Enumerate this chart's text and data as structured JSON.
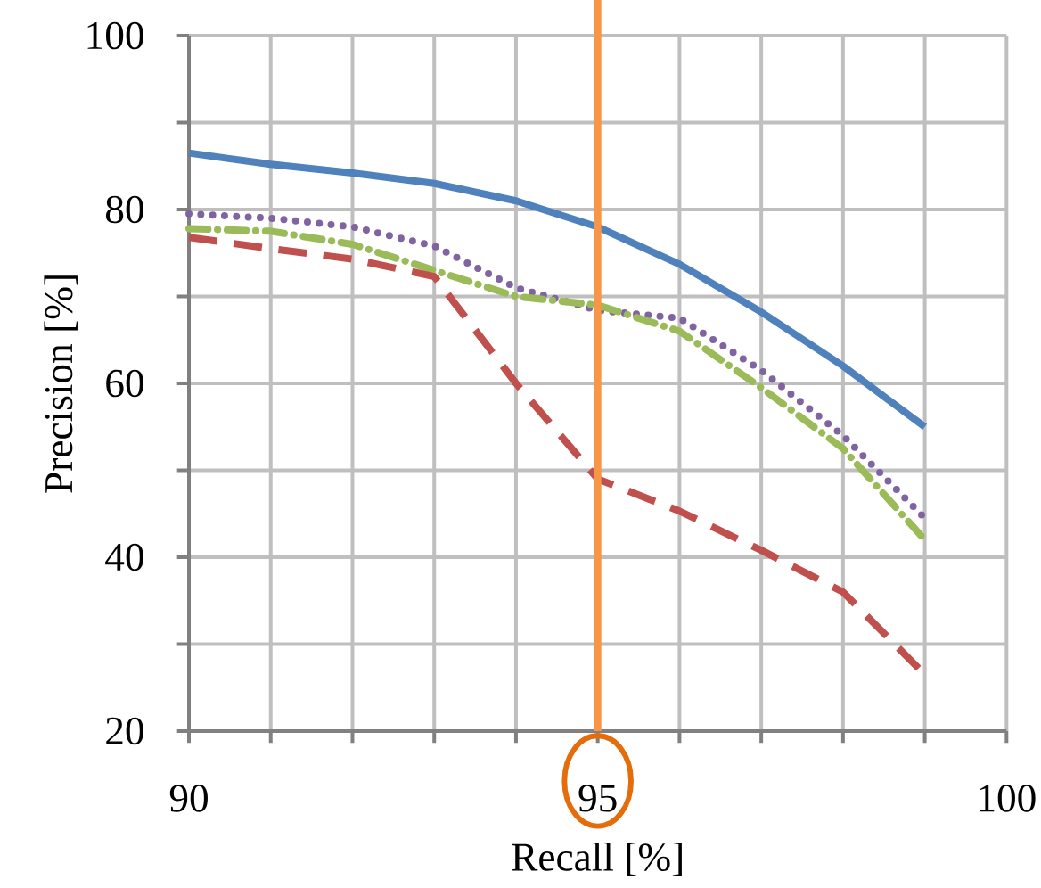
{
  "chart_data": {
    "type": "line",
    "xlabel": "Recall [%]",
    "ylabel": "Precision [%]",
    "xlim": [
      90,
      100
    ],
    "ylim": [
      20,
      100
    ],
    "xticks": [
      90,
      {
        "value": 91,
        "label": null
      },
      {
        "value": 92,
        "label": null
      },
      {
        "value": 93,
        "label": null
      },
      {
        "value": 94,
        "label": null
      },
      95,
      {
        "value": 96,
        "label": null
      },
      {
        "value": 97,
        "label": null
      },
      {
        "value": 98,
        "label": null
      },
      {
        "value": 99,
        "label": null
      },
      100
    ],
    "yticks": [
      20,
      {
        "value": 30,
        "label": null
      },
      40,
      {
        "value": 50,
        "label": null
      },
      60,
      {
        "value": 70,
        "label": null
      },
      80,
      {
        "value": 90,
        "label": null
      },
      100
    ],
    "grid": true,
    "x": [
      90,
      91,
      92,
      93,
      94,
      95,
      96,
      97,
      98,
      99
    ],
    "series": [
      {
        "color": "#4f81bd",
        "line_style": "solid",
        "values": [
          86.5,
          85.2,
          84.2,
          83.0,
          81.0,
          78.0,
          73.7,
          68.2,
          62.0,
          55.0
        ]
      },
      {
        "color": "#8064a2",
        "line_style": "dotted",
        "values": [
          79.5,
          79.0,
          78.0,
          75.8,
          71.0,
          68.4,
          67.5,
          61.5,
          54.0,
          44.5
        ]
      },
      {
        "color": "#9bbb59",
        "line_style": "dashdot",
        "values": [
          77.8,
          77.5,
          76.0,
          73.0,
          70.0,
          69.0,
          66.0,
          59.5,
          52.5,
          42.0
        ]
      },
      {
        "color": "#c0504d",
        "line_style": "dashed",
        "values": [
          76.8,
          75.5,
          74.3,
          72.3,
          60.0,
          49.0,
          45.3,
          40.8,
          36.0,
          26.5
        ]
      }
    ],
    "ref_lines": [
      {
        "axis": "x",
        "value": 95,
        "color": "#f79646"
      }
    ]
  }
}
